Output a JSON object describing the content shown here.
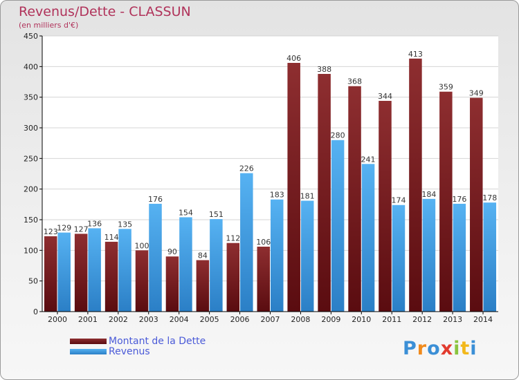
{
  "header": {
    "title": "Revenus/Dette - CLASSUN",
    "subtitle": "(en milliers d'€)"
  },
  "legend": {
    "debt_label": "Montant de la Dette",
    "revenue_label": "Revenus"
  },
  "logo": {
    "letters": [
      "P",
      "r",
      "o",
      "x",
      "i",
      "t",
      "i"
    ],
    "colors": [
      "#3b8fd6",
      "#f08a1c",
      "#3b8fd6",
      "#e23b2e",
      "#8ac43f",
      "#f2b81c",
      "#3b8fd6"
    ]
  },
  "colors": {
    "debt": "#7a1f22",
    "revenue": "#3d9ee8",
    "title": "#b0325a",
    "legend_text": "#4a5ad8"
  },
  "chart_data": {
    "type": "bar",
    "title": "Revenus/Dette - CLASSUN",
    "subtitle": "(en milliers d'€)",
    "categories": [
      "2000",
      "2001",
      "2002",
      "2003",
      "2004",
      "2005",
      "2006",
      "2007",
      "2008",
      "2009",
      "2010",
      "2011",
      "2012",
      "2013",
      "2014"
    ],
    "series": [
      {
        "name": "Montant de la Dette",
        "values": [
          123,
          127,
          114,
          100,
          90,
          84,
          112,
          106,
          406,
          388,
          368,
          344,
          413,
          359,
          349
        ]
      },
      {
        "name": "Revenus",
        "values": [
          129,
          136,
          135,
          176,
          154,
          151,
          226,
          183,
          181,
          280,
          241,
          174,
          184,
          176,
          178
        ]
      }
    ],
    "ylim": [
      0,
      450
    ],
    "yticks": [
      0,
      50,
      100,
      150,
      200,
      250,
      300,
      350,
      400,
      450
    ],
    "grid": true,
    "legend": "bottom-left"
  }
}
